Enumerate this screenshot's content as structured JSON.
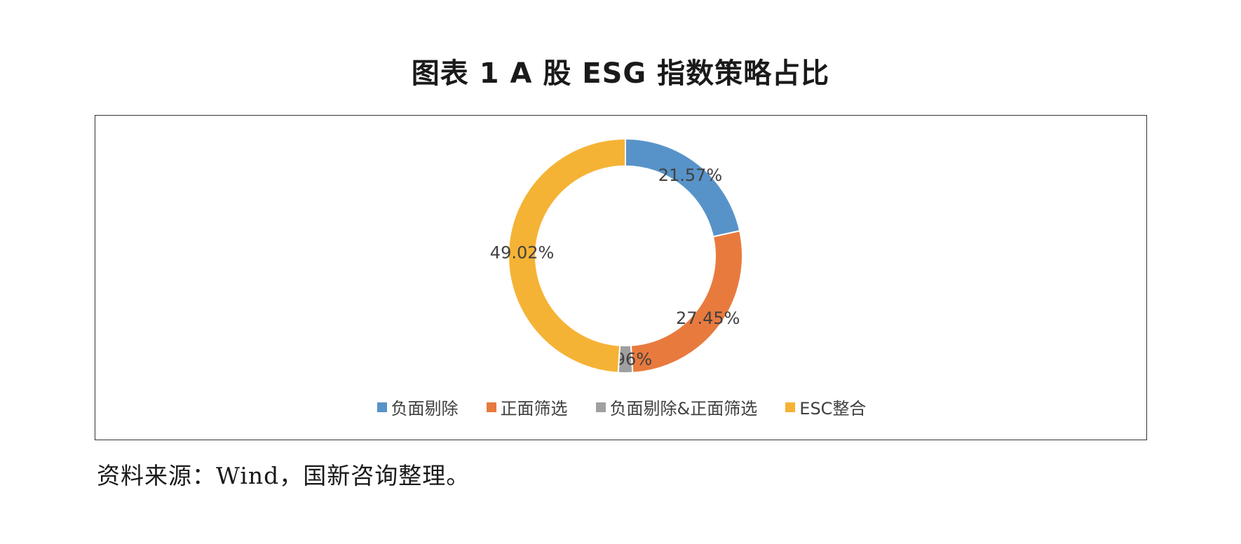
{
  "title": "图表 1 A 股 ESG 指数策略占比",
  "source_note": "资料来源：Wind，国新咨询整理。",
  "chart_data": {
    "type": "pie",
    "variant": "donut",
    "title": "图表 1 A 股 ESG 指数策略占比",
    "legend_position": "bottom",
    "categories": [
      "负面剔除",
      "正面筛选",
      "负面剔除&正面筛选",
      "ESC整合"
    ],
    "values": [
      21.57,
      27.45,
      1.96,
      49.02
    ],
    "labels": [
      "21.57%",
      "27.45%",
      "1.96%",
      "49.02%"
    ],
    "colors": [
      "#5793C9",
      "#E87A3E",
      "#A0A0A0",
      "#F5B335"
    ]
  }
}
